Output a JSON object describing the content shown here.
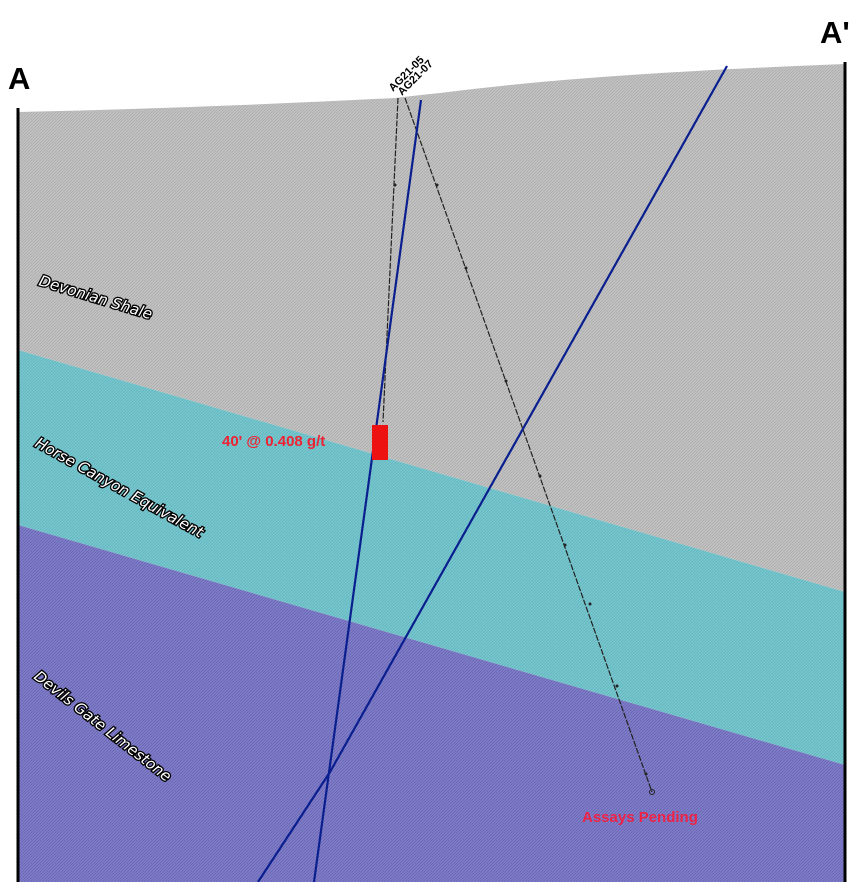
{
  "section": {
    "start_label": "A",
    "end_label": "A'"
  },
  "units": [
    {
      "name": "Devonian Shale",
      "color": "#c8c8c8"
    },
    {
      "name": "Horse Canyon Equivalent",
      "color": "#73c3cb"
    },
    {
      "name": "Devils Gate Limestone",
      "color": "#7c79c2"
    }
  ],
  "drill_holes": [
    {
      "id": "AG21-05",
      "color": "#111111"
    },
    {
      "id": "AG21-07",
      "color": "#0a1f8f"
    }
  ],
  "annotations": {
    "assay_result": "40' @ 0.408 g/t",
    "assay_color": "#ee1111",
    "pending": "Assays Pending"
  }
}
